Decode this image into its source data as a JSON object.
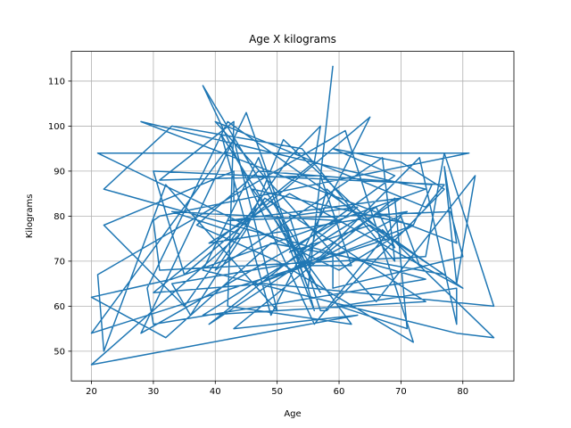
{
  "chart_data": {
    "type": "line",
    "title": "Age X kilograms",
    "xlabel": "Age",
    "ylabel": "Kilograms",
    "xlim": [
      16.75,
      88.25
    ],
    "ylim": [
      43.4,
      116.6
    ],
    "xticks": [
      20,
      30,
      40,
      50,
      60,
      70,
      80
    ],
    "yticks": [
      50,
      60,
      70,
      80,
      90,
      100,
      110
    ],
    "grid": true,
    "color": "#1f77b4",
    "series": [
      {
        "x": [
          59,
          55,
          56,
          50,
          57,
          41,
          49,
          65,
          35,
          30,
          77,
          74,
          40,
          66,
          82,
          79,
          77,
          79,
          28,
          74,
          33,
          20,
          32,
          49,
          77,
          65,
          52,
          69,
          59,
          70,
          77,
          58,
          57,
          52,
          63,
          39,
          70,
          42,
          78,
          80,
          59,
          59,
          33,
          36,
          45,
          51,
          58,
          68,
          20,
          43,
          50,
          32,
          22,
          21,
          61,
          72,
          50,
          37,
          47,
          75,
          72,
          47,
          57,
          73,
          79,
          79,
          60,
          71,
          69,
          43,
          63,
          20,
          44,
          33,
          60,
          28,
          45,
          55,
          47,
          38,
          79,
          85,
          67,
          73,
          70,
          56,
          38,
          55,
          58,
          69,
          66,
          38,
          74,
          48,
          40,
          67,
          69,
          54,
          33,
          22,
          74,
          30,
          29,
          42,
          80,
          52,
          39,
          71,
          55,
          62,
          57,
          31,
          43,
          42,
          62,
          46,
          72,
          60,
          21,
          81,
          31,
          30,
          31,
          74,
          77,
          85,
          48,
          30,
          56,
          57,
          52,
          35,
          22,
          43,
          43,
          43
        ],
        "y": [
          113.4,
          64,
          59,
          80,
          63,
          98,
          58,
          102,
          67,
          90,
          87,
          82,
          101,
          61,
          89,
          65,
          91,
          74,
          101,
          86,
          66,
          62,
          53,
          74,
          67,
          78,
          72,
          89,
          95,
          92,
          86,
          59,
          59,
          80,
          82,
          56,
          84,
          79,
          81,
          71,
          64,
          71,
          65,
          58,
          77,
          97,
          88,
          75,
          54,
          97,
          59,
          87,
          50,
          67,
          99,
          52,
          70,
          78,
          90,
          87,
          78,
          65,
          71,
          93,
          56,
          64,
          60,
          55,
          84,
          55,
          58,
          47,
          76,
          81,
          79,
          54,
          103,
          64,
          93,
          68,
          54,
          53,
          77,
          69,
          80,
          56,
          109,
          70,
          86,
          73,
          82,
          58,
          61,
          84,
          68,
          93,
          70,
          95,
          100,
          86,
          66,
          56,
          64,
          101,
          64,
          85,
          74,
          81,
          69,
          69,
          89,
          88,
          101,
          60,
          56,
          86,
          78,
          68,
          94,
          94,
          80,
          79,
          68,
          71,
          94,
          60,
          65,
          63,
          92,
          100,
          93,
          60,
          78,
          90,
          87,
          83
        ]
      }
    ]
  }
}
